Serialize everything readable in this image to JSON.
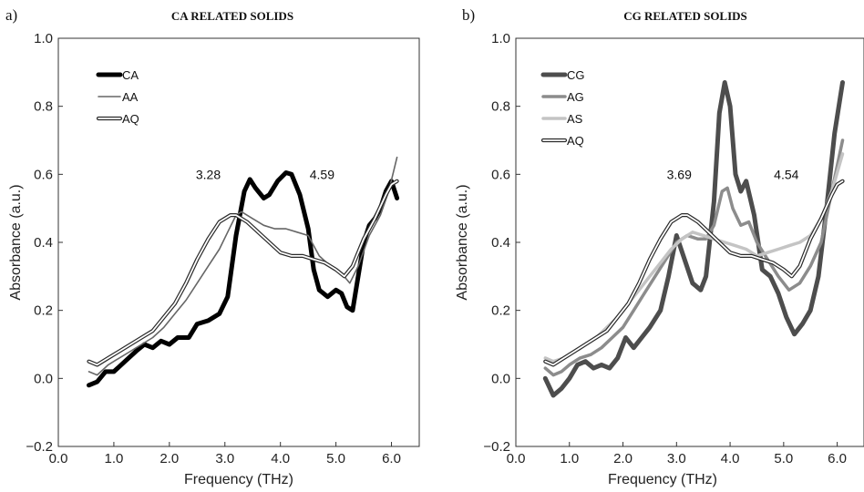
{
  "chart_data": [
    {
      "type": "line",
      "panel_label": "a)",
      "title": "CA RELATED SOLIDS",
      "xlabel": "Frequency (THz)",
      "ylabel": "Absorbance (a.u.)",
      "xlim": [
        0.0,
        6.5
      ],
      "ylim": [
        -0.2,
        1.0
      ],
      "x_ticks": [
        "0.0",
        "1.0",
        "2.0",
        "3.0",
        "4.0",
        "5.0",
        "6.0"
      ],
      "y_ticks": [
        "−0.2",
        "0.0",
        "0.2",
        "0.4",
        "0.6",
        "0.8",
        "1.0"
      ],
      "grid": false,
      "legend_position": "top-left",
      "annotations": [
        {
          "text": "3.28",
          "x": 2.7,
          "y": 0.6
        },
        {
          "text": "4.59",
          "x": 4.75,
          "y": 0.6
        }
      ],
      "series": [
        {
          "name": "CA",
          "color": "#000000",
          "style": "thick",
          "points": [
            [
              0.55,
              -0.02
            ],
            [
              0.7,
              -0.01
            ],
            [
              0.85,
              0.02
            ],
            [
              1.0,
              0.02
            ],
            [
              1.2,
              0.05
            ],
            [
              1.4,
              0.08
            ],
            [
              1.55,
              0.1
            ],
            [
              1.7,
              0.09
            ],
            [
              1.85,
              0.11
            ],
            [
              2.0,
              0.1
            ],
            [
              2.15,
              0.12
            ],
            [
              2.35,
              0.12
            ],
            [
              2.5,
              0.16
            ],
            [
              2.7,
              0.17
            ],
            [
              2.9,
              0.19
            ],
            [
              3.05,
              0.24
            ],
            [
              3.2,
              0.42
            ],
            [
              3.35,
              0.55
            ],
            [
              3.45,
              0.585
            ],
            [
              3.55,
              0.56
            ],
            [
              3.7,
              0.53
            ],
            [
              3.8,
              0.54
            ],
            [
              3.95,
              0.58
            ],
            [
              4.1,
              0.605
            ],
            [
              4.2,
              0.6
            ],
            [
              4.35,
              0.54
            ],
            [
              4.5,
              0.44
            ],
            [
              4.6,
              0.32
            ],
            [
              4.7,
              0.26
            ],
            [
              4.85,
              0.24
            ],
            [
              5.0,
              0.26
            ],
            [
              5.1,
              0.25
            ],
            [
              5.2,
              0.21
            ],
            [
              5.3,
              0.2
            ],
            [
              5.4,
              0.3
            ],
            [
              5.5,
              0.4
            ],
            [
              5.6,
              0.45
            ],
            [
              5.7,
              0.47
            ],
            [
              5.8,
              0.5
            ],
            [
              5.9,
              0.55
            ],
            [
              6.0,
              0.58
            ],
            [
              6.1,
              0.53
            ]
          ]
        },
        {
          "name": "AA",
          "color": "#666666",
          "style": "thin",
          "points": [
            [
              0.55,
              0.02
            ],
            [
              0.7,
              0.01
            ],
            [
              0.9,
              0.04
            ],
            [
              1.1,
              0.06
            ],
            [
              1.3,
              0.08
            ],
            [
              1.5,
              0.1
            ],
            [
              1.7,
              0.12
            ],
            [
              1.9,
              0.15
            ],
            [
              2.1,
              0.19
            ],
            [
              2.3,
              0.23
            ],
            [
              2.5,
              0.28
            ],
            [
              2.7,
              0.33
            ],
            [
              2.9,
              0.38
            ],
            [
              3.05,
              0.43
            ],
            [
              3.2,
              0.48
            ],
            [
              3.3,
              0.49
            ],
            [
              3.5,
              0.47
            ],
            [
              3.7,
              0.45
            ],
            [
              3.9,
              0.44
            ],
            [
              4.1,
              0.44
            ],
            [
              4.3,
              0.43
            ],
            [
              4.5,
              0.42
            ],
            [
              4.7,
              0.36
            ],
            [
              4.9,
              0.33
            ],
            [
              5.1,
              0.31
            ],
            [
              5.25,
              0.28
            ],
            [
              5.4,
              0.33
            ],
            [
              5.6,
              0.42
            ],
            [
              5.8,
              0.48
            ],
            [
              5.95,
              0.55
            ],
            [
              6.1,
              0.65
            ]
          ]
        },
        {
          "name": "AQ",
          "color": "#ffffff",
          "style": "outlined",
          "points": [
            [
              0.55,
              0.05
            ],
            [
              0.7,
              0.04
            ],
            [
              0.9,
              0.06
            ],
            [
              1.1,
              0.08
            ],
            [
              1.3,
              0.1
            ],
            [
              1.5,
              0.12
            ],
            [
              1.7,
              0.14
            ],
            [
              1.9,
              0.18
            ],
            [
              2.1,
              0.22
            ],
            [
              2.3,
              0.28
            ],
            [
              2.5,
              0.35
            ],
            [
              2.7,
              0.41
            ],
            [
              2.9,
              0.46
            ],
            [
              3.1,
              0.48
            ],
            [
              3.2,
              0.48
            ],
            [
              3.4,
              0.46
            ],
            [
              3.6,
              0.43
            ],
            [
              3.8,
              0.4
            ],
            [
              4.0,
              0.37
            ],
            [
              4.2,
              0.36
            ],
            [
              4.4,
              0.36
            ],
            [
              4.6,
              0.35
            ],
            [
              4.8,
              0.34
            ],
            [
              5.0,
              0.32
            ],
            [
              5.15,
              0.3
            ],
            [
              5.3,
              0.33
            ],
            [
              5.5,
              0.41
            ],
            [
              5.7,
              0.47
            ],
            [
              5.9,
              0.54
            ],
            [
              6.0,
              0.57
            ],
            [
              6.1,
              0.58
            ]
          ]
        }
      ]
    },
    {
      "type": "line",
      "panel_label": "b)",
      "title": "CG RELATED SOLIDS",
      "xlabel": "Frequency (THz)",
      "ylabel": "Absorbance (a.u.)",
      "xlim": [
        0.0,
        6.5
      ],
      "ylim": [
        -0.2,
        1.0
      ],
      "x_ticks": [
        "0.0",
        "1.0",
        "2.0",
        "3.0",
        "4.0",
        "5.0",
        "6.0"
      ],
      "y_ticks": [
        "−0.2",
        "0.0",
        "0.2",
        "0.4",
        "0.6",
        "0.8",
        "1.0"
      ],
      "grid": false,
      "legend_position": "top-left",
      "annotations": [
        {
          "text": "3.69",
          "x": 3.05,
          "y": 0.6
        },
        {
          "text": "4.54",
          "x": 5.05,
          "y": 0.6
        }
      ],
      "series": [
        {
          "name": "CG",
          "color": "#4d4d4d",
          "style": "thick",
          "points": [
            [
              0.55,
              0.0
            ],
            [
              0.7,
              -0.05
            ],
            [
              0.85,
              -0.03
            ],
            [
              1.0,
              0.0
            ],
            [
              1.15,
              0.04
            ],
            [
              1.3,
              0.05
            ],
            [
              1.45,
              0.03
            ],
            [
              1.6,
              0.04
            ],
            [
              1.75,
              0.03
            ],
            [
              1.9,
              0.06
            ],
            [
              2.05,
              0.12
            ],
            [
              2.2,
              0.09
            ],
            [
              2.35,
              0.12
            ],
            [
              2.5,
              0.15
            ],
            [
              2.7,
              0.2
            ],
            [
              2.85,
              0.3
            ],
            [
              3.0,
              0.42
            ],
            [
              3.15,
              0.35
            ],
            [
              3.3,
              0.28
            ],
            [
              3.45,
              0.26
            ],
            [
              3.55,
              0.3
            ],
            [
              3.7,
              0.52
            ],
            [
              3.8,
              0.78
            ],
            [
              3.9,
              0.87
            ],
            [
              4.0,
              0.8
            ],
            [
              4.1,
              0.6
            ],
            [
              4.2,
              0.55
            ],
            [
              4.3,
              0.58
            ],
            [
              4.45,
              0.48
            ],
            [
              4.6,
              0.32
            ],
            [
              4.75,
              0.3
            ],
            [
              4.9,
              0.25
            ],
            [
              5.05,
              0.18
            ],
            [
              5.2,
              0.13
            ],
            [
              5.35,
              0.16
            ],
            [
              5.5,
              0.2
            ],
            [
              5.65,
              0.3
            ],
            [
              5.8,
              0.5
            ],
            [
              5.95,
              0.72
            ],
            [
              6.1,
              0.87
            ]
          ]
        },
        {
          "name": "AG",
          "color": "#8c8c8c",
          "style": "medium",
          "points": [
            [
              0.55,
              0.03
            ],
            [
              0.7,
              0.01
            ],
            [
              0.85,
              0.02
            ],
            [
              1.0,
              0.04
            ],
            [
              1.2,
              0.06
            ],
            [
              1.4,
              0.07
            ],
            [
              1.6,
              0.09
            ],
            [
              1.8,
              0.12
            ],
            [
              2.0,
              0.15
            ],
            [
              2.2,
              0.2
            ],
            [
              2.4,
              0.25
            ],
            [
              2.6,
              0.3
            ],
            [
              2.8,
              0.35
            ],
            [
              3.0,
              0.4
            ],
            [
              3.2,
              0.42
            ],
            [
              3.4,
              0.41
            ],
            [
              3.55,
              0.41
            ],
            [
              3.7,
              0.45
            ],
            [
              3.85,
              0.55
            ],
            [
              3.95,
              0.56
            ],
            [
              4.05,
              0.5
            ],
            [
              4.2,
              0.45
            ],
            [
              4.35,
              0.46
            ],
            [
              4.5,
              0.4
            ],
            [
              4.7,
              0.35
            ],
            [
              4.9,
              0.3
            ],
            [
              5.1,
              0.26
            ],
            [
              5.3,
              0.28
            ],
            [
              5.5,
              0.33
            ],
            [
              5.7,
              0.4
            ],
            [
              5.9,
              0.55
            ],
            [
              6.1,
              0.7
            ]
          ]
        },
        {
          "name": "AS",
          "color": "#c4c4c4",
          "style": "medium",
          "points": [
            [
              0.55,
              0.06
            ],
            [
              0.7,
              0.05
            ],
            [
              0.9,
              0.06
            ],
            [
              1.1,
              0.08
            ],
            [
              1.3,
              0.1
            ],
            [
              1.5,
              0.12
            ],
            [
              1.7,
              0.15
            ],
            [
              1.9,
              0.18
            ],
            [
              2.1,
              0.22
            ],
            [
              2.3,
              0.26
            ],
            [
              2.5,
              0.3
            ],
            [
              2.7,
              0.34
            ],
            [
              2.9,
              0.38
            ],
            [
              3.1,
              0.41
            ],
            [
              3.3,
              0.43
            ],
            [
              3.5,
              0.42
            ],
            [
              3.7,
              0.41
            ],
            [
              3.9,
              0.4
            ],
            [
              4.1,
              0.39
            ],
            [
              4.3,
              0.38
            ],
            [
              4.5,
              0.36
            ],
            [
              4.7,
              0.37
            ],
            [
              4.9,
              0.38
            ],
            [
              5.1,
              0.39
            ],
            [
              5.3,
              0.4
            ],
            [
              5.5,
              0.42
            ],
            [
              5.7,
              0.47
            ],
            [
              5.9,
              0.55
            ],
            [
              6.1,
              0.66
            ]
          ]
        },
        {
          "name": "AQ",
          "color": "#ffffff",
          "style": "outlined",
          "points": [
            [
              0.55,
              0.05
            ],
            [
              0.7,
              0.04
            ],
            [
              0.9,
              0.06
            ],
            [
              1.1,
              0.08
            ],
            [
              1.3,
              0.1
            ],
            [
              1.5,
              0.12
            ],
            [
              1.7,
              0.14
            ],
            [
              1.9,
              0.18
            ],
            [
              2.1,
              0.22
            ],
            [
              2.3,
              0.28
            ],
            [
              2.5,
              0.35
            ],
            [
              2.7,
              0.41
            ],
            [
              2.9,
              0.46
            ],
            [
              3.1,
              0.48
            ],
            [
              3.2,
              0.48
            ],
            [
              3.4,
              0.46
            ],
            [
              3.6,
              0.43
            ],
            [
              3.8,
              0.4
            ],
            [
              4.0,
              0.37
            ],
            [
              4.2,
              0.36
            ],
            [
              4.4,
              0.36
            ],
            [
              4.6,
              0.35
            ],
            [
              4.8,
              0.34
            ],
            [
              5.0,
              0.32
            ],
            [
              5.15,
              0.3
            ],
            [
              5.3,
              0.33
            ],
            [
              5.5,
              0.41
            ],
            [
              5.7,
              0.47
            ],
            [
              5.9,
              0.54
            ],
            [
              6.0,
              0.57
            ],
            [
              6.1,
              0.58
            ]
          ]
        }
      ]
    }
  ]
}
